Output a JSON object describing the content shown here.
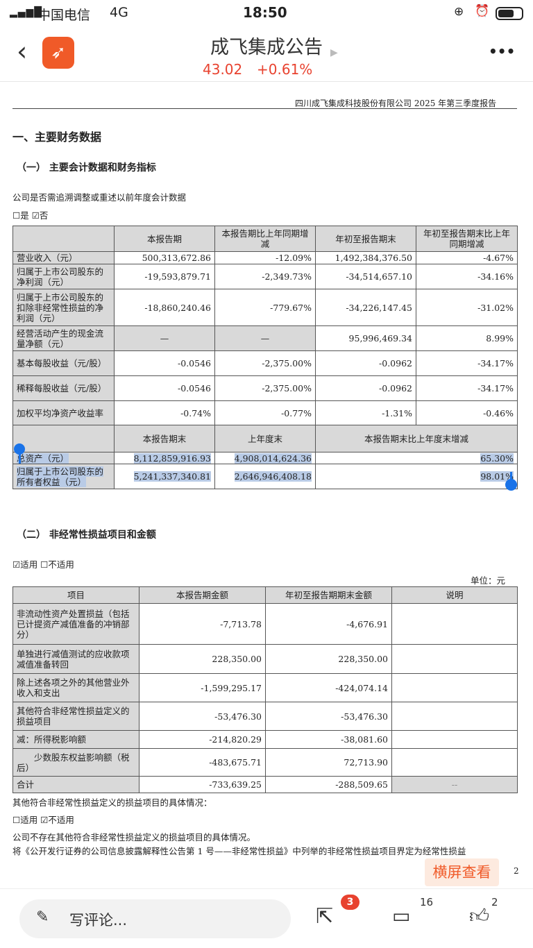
{
  "status_bar": {
    "carrier": "中国电信",
    "network": "4G",
    "time": "18:50"
  },
  "header": {
    "title": "成飞集成公告",
    "price": "43.02",
    "change": "+0.61%",
    "more": "•••"
  },
  "doc": {
    "running_header": "四川成飞集成科技股份有限公司 2025 年第三季度报告",
    "section_title": "一、主要财务数据",
    "sub1_title": "（一）  主要会计数据和财务指标",
    "restate_question": "公司是否需追溯调整或重述以前年度会计数据",
    "restate_answer": "☐是 ☑否",
    "table1": {
      "headers": [
        "",
        "本报告期",
        "本报告期比上年同期增减",
        "年初至报告期末",
        "年初至报告期末比上年同期增减"
      ],
      "rows": [
        [
          "营业收入（元）",
          "500,313,672.86",
          "-12.09%",
          "1,492,384,376.50",
          "-4.67%"
        ],
        [
          "归属于上市公司股东的净利润（元）",
          "-19,593,879.71",
          "-2,349.73%",
          "-34,514,657.10",
          "-34.16%"
        ],
        [
          "归属于上市公司股东的扣除非经常性损益的净利润（元）",
          "-18,860,240.46",
          "-779.67%",
          "-34,226,147.45",
          "-31.02%"
        ],
        [
          "经营活动产生的现金流量净额（元）",
          "—",
          "—",
          "95,996,469.34",
          "8.99%"
        ],
        [
          "基本每股收益（元/股）",
          "-0.0546",
          "-2,375.00%",
          "-0.0962",
          "-34.17%"
        ],
        [
          "稀释每股收益（元/股）",
          "-0.0546",
          "-2,375.00%",
          "-0.0962",
          "-34.17%"
        ],
        [
          "加权平均净资产收益率",
          "-0.74%",
          "-0.77%",
          "-1.31%",
          "-0.46%"
        ]
      ],
      "headers2": [
        "",
        "本报告期末",
        "上年度末",
        "本报告期末比上年度末增减"
      ],
      "rows2": [
        [
          "总资产（元）",
          "8,112,859,916.93",
          "4,908,014,624.36",
          "65.30%"
        ],
        [
          "归属于上市公司股东的所有者权益（元）",
          "5,241,337,340.81",
          "2,646,946,408.18",
          "98.01%"
        ]
      ]
    },
    "sub2_title": "（二）  非经常性损益项目和金额",
    "applicable": "☑适用 ☐不适用",
    "unit": "单位：元",
    "table2": {
      "headers": [
        "项目",
        "本报告期金额",
        "年初至报告期期末金额",
        "说明"
      ],
      "rows": [
        [
          "非流动性资产处置损益（包括已计提资产减值准备的冲销部分）",
          "-7,713.78",
          "-4,676.91",
          ""
        ],
        [
          "单独进行减值测试的应收款项减值准备转回",
          "228,350.00",
          "228,350.00",
          ""
        ],
        [
          "除上述各项之外的其他营业外收入和支出",
          "-1,599,295.17",
          "-424,074.14",
          ""
        ],
        [
          "其他符合非经常性损益定义的损益项目",
          "-53,476.30",
          "-53,476.30",
          ""
        ],
        [
          "减：所得税影响额",
          "-214,820.29",
          "-38,081.60",
          ""
        ],
        [
          "少数股东权益影响额（税后）",
          "-483,675.71",
          "72,713.90",
          ""
        ],
        [
          "合计",
          "-733,639.25",
          "-288,509.65",
          "--"
        ]
      ]
    },
    "other_note": "其他符合非经常性损益定义的损益项目的具体情况：",
    "other_applicable": "☐适用 ☑不适用",
    "para1": "公司不存在其他符合非经常性损益定义的损益项目的具体情况。",
    "para2": "将《公开发行证券的公司信息披露解释性公告第 1 号——非经常性损益》中列举的非经常性损益项目界定为经常性损益",
    "page_number": "2"
  },
  "landscape_button": "横屏查看",
  "bottom_bar": {
    "comment_placeholder": "写评论...",
    "share_badge": "3",
    "comment_count": "16",
    "like_count": "2"
  },
  "colors": {
    "accent": "#f05a28",
    "up": "#e8422f",
    "selection": "#b9cbe6",
    "handle": "#1a73e8"
  }
}
